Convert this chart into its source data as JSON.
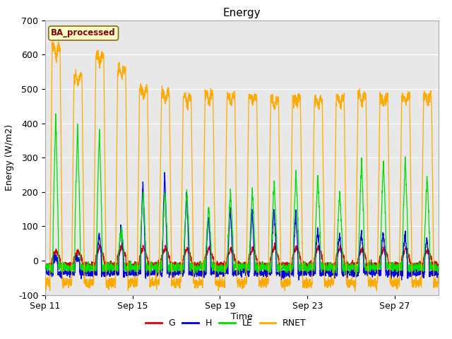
{
  "title": "Energy",
  "xlabel": "Time",
  "ylabel": "Energy (W/m2)",
  "ylim": [
    -100,
    700
  ],
  "yticks": [
    -100,
    0,
    100,
    200,
    300,
    400,
    500,
    600,
    700
  ],
  "xtick_labels": [
    "Sep 11",
    "Sep 15",
    "Sep 19",
    "Sep 23",
    "Sep 27"
  ],
  "xtick_positions": [
    0,
    4,
    8,
    12,
    16
  ],
  "colors": {
    "G": "#dd0000",
    "H": "#0000dd",
    "LE": "#00dd00",
    "RNET": "#ffaa00"
  },
  "legend_label": "BA_processed",
  "background_color": "#e8e8e8",
  "n_days": 18,
  "points_per_day": 144,
  "rnet_day_peaks": [
    620,
    540,
    600,
    560,
    500,
    490,
    480,
    485,
    480,
    480,
    470,
    475,
    470,
    475,
    480,
    475,
    480,
    480
  ],
  "le_day_peaks": [
    420,
    390,
    380,
    90,
    200,
    205,
    200,
    155,
    200,
    200,
    230,
    255,
    250,
    200,
    295,
    290,
    300,
    245
  ],
  "h_day_peaks": [
    10,
    10,
    80,
    100,
    230,
    260,
    200,
    130,
    155,
    150,
    150,
    135,
    90,
    80,
    80,
    80,
    75,
    65
  ],
  "g_day_peaks": [
    30,
    25,
    40,
    45,
    40,
    38,
    35,
    35,
    35,
    35,
    40,
    40,
    40,
    38,
    35,
    35,
    35,
    30
  ]
}
